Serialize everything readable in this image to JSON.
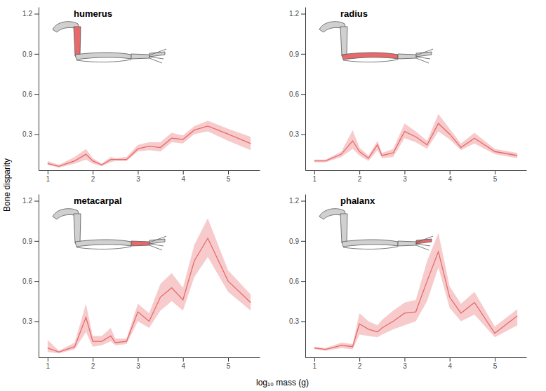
{
  "x_label": "log₁₀ mass (g)",
  "y_label": "Bone disparity",
  "chart_data": [
    {
      "type": "line",
      "title": "humerus",
      "x": [
        1,
        1.25,
        1.6,
        1.85,
        2,
        2.2,
        2.4,
        2.5,
        2.75,
        3,
        3.25,
        3.5,
        3.75,
        4,
        4.25,
        4.55,
        5,
        5.5
      ],
      "xlim": [
        0.8,
        5.7
      ],
      "xticks": [
        1,
        2,
        3,
        4,
        5
      ],
      "ylim": [
        0.03,
        1.25
      ],
      "yticks": [
        0.3,
        0.6,
        0.9,
        1.2
      ],
      "series": [
        {
          "color": "#e8696b",
          "values": [
            0.08,
            0.06,
            0.1,
            0.15,
            0.1,
            0.07,
            0.11,
            0.11,
            0.11,
            0.19,
            0.21,
            0.2,
            0.27,
            0.26,
            0.33,
            0.36,
            0.3,
            0.23
          ],
          "lower": [
            0.07,
            0.05,
            0.08,
            0.11,
            0.08,
            0.06,
            0.09,
            0.1,
            0.1,
            0.17,
            0.18,
            0.17,
            0.24,
            0.23,
            0.3,
            0.32,
            0.25,
            0.18
          ],
          "upper": [
            0.1,
            0.07,
            0.13,
            0.19,
            0.12,
            0.08,
            0.13,
            0.12,
            0.13,
            0.22,
            0.24,
            0.24,
            0.31,
            0.29,
            0.36,
            0.4,
            0.34,
            0.28
          ]
        }
      ]
    },
    {
      "type": "line",
      "title": "radius",
      "x": [
        1,
        1.25,
        1.6,
        1.85,
        2,
        2.2,
        2.4,
        2.5,
        2.75,
        3,
        3.25,
        3.5,
        3.75,
        4,
        4.25,
        4.55,
        5,
        5.5
      ],
      "xlim": [
        0.8,
        5.7
      ],
      "xticks": [
        1,
        2,
        3,
        4,
        5
      ],
      "ylim": [
        0.03,
        1.25
      ],
      "yticks": [
        0.3,
        0.6,
        0.9,
        1.2
      ],
      "series": [
        {
          "color": "#e8696b",
          "values": [
            0.1,
            0.1,
            0.15,
            0.25,
            0.17,
            0.12,
            0.22,
            0.14,
            0.16,
            0.32,
            0.28,
            0.22,
            0.38,
            0.3,
            0.2,
            0.27,
            0.17,
            0.14
          ],
          "lower": [
            0.09,
            0.09,
            0.13,
            0.19,
            0.14,
            0.1,
            0.18,
            0.12,
            0.13,
            0.27,
            0.24,
            0.19,
            0.32,
            0.26,
            0.18,
            0.23,
            0.15,
            0.12
          ],
          "upper": [
            0.11,
            0.11,
            0.17,
            0.33,
            0.2,
            0.14,
            0.25,
            0.16,
            0.19,
            0.38,
            0.32,
            0.25,
            0.45,
            0.34,
            0.23,
            0.31,
            0.19,
            0.16
          ]
        }
      ]
    },
    {
      "type": "line",
      "title": "metacarpal",
      "x": [
        1,
        1.25,
        1.6,
        1.85,
        2,
        2.2,
        2.4,
        2.5,
        2.75,
        3,
        3.25,
        3.5,
        3.75,
        4,
        4.25,
        4.55,
        5,
        5.5
      ],
      "xlim": [
        0.8,
        5.7
      ],
      "xticks": [
        1,
        2,
        3,
        4,
        5
      ],
      "ylim": [
        0.03,
        1.25
      ],
      "yticks": [
        0.3,
        0.6,
        0.9,
        1.2
      ],
      "series": [
        {
          "color": "#e8696b",
          "values": [
            0.1,
            0.07,
            0.11,
            0.33,
            0.15,
            0.15,
            0.19,
            0.14,
            0.15,
            0.37,
            0.3,
            0.48,
            0.55,
            0.46,
            0.75,
            0.92,
            0.6,
            0.44
          ],
          "lower": [
            0.07,
            0.06,
            0.09,
            0.22,
            0.11,
            0.12,
            0.15,
            0.12,
            0.13,
            0.3,
            0.25,
            0.38,
            0.45,
            0.38,
            0.63,
            0.78,
            0.52,
            0.38
          ],
          "upper": [
            0.16,
            0.08,
            0.14,
            0.43,
            0.19,
            0.19,
            0.25,
            0.17,
            0.17,
            0.43,
            0.36,
            0.58,
            0.66,
            0.55,
            0.87,
            1.07,
            0.68,
            0.5
          ]
        }
      ]
    },
    {
      "type": "line",
      "title": "phalanx",
      "x": [
        1,
        1.25,
        1.6,
        1.85,
        2,
        2.2,
        2.4,
        2.5,
        2.75,
        3,
        3.25,
        3.5,
        3.75,
        4,
        4.25,
        4.55,
        5,
        5.5
      ],
      "xlim": [
        0.8,
        5.7
      ],
      "xticks": [
        1,
        2,
        3,
        4,
        5
      ],
      "ylim": [
        0.03,
        1.25
      ],
      "yticks": [
        0.3,
        0.6,
        0.9,
        1.2
      ],
      "series": [
        {
          "color": "#e8696b",
          "values": [
            0.1,
            0.09,
            0.12,
            0.11,
            0.28,
            0.24,
            0.22,
            0.25,
            0.3,
            0.36,
            0.37,
            0.6,
            0.82,
            0.48,
            0.36,
            0.44,
            0.21,
            0.34
          ],
          "lower": [
            0.09,
            0.08,
            0.1,
            0.09,
            0.2,
            0.19,
            0.18,
            0.2,
            0.24,
            0.27,
            0.3,
            0.45,
            0.7,
            0.4,
            0.3,
            0.35,
            0.18,
            0.27
          ],
          "upper": [
            0.11,
            0.1,
            0.14,
            0.13,
            0.36,
            0.3,
            0.27,
            0.31,
            0.38,
            0.44,
            0.46,
            0.75,
            0.96,
            0.56,
            0.43,
            0.52,
            0.26,
            0.39
          ]
        }
      ]
    }
  ]
}
